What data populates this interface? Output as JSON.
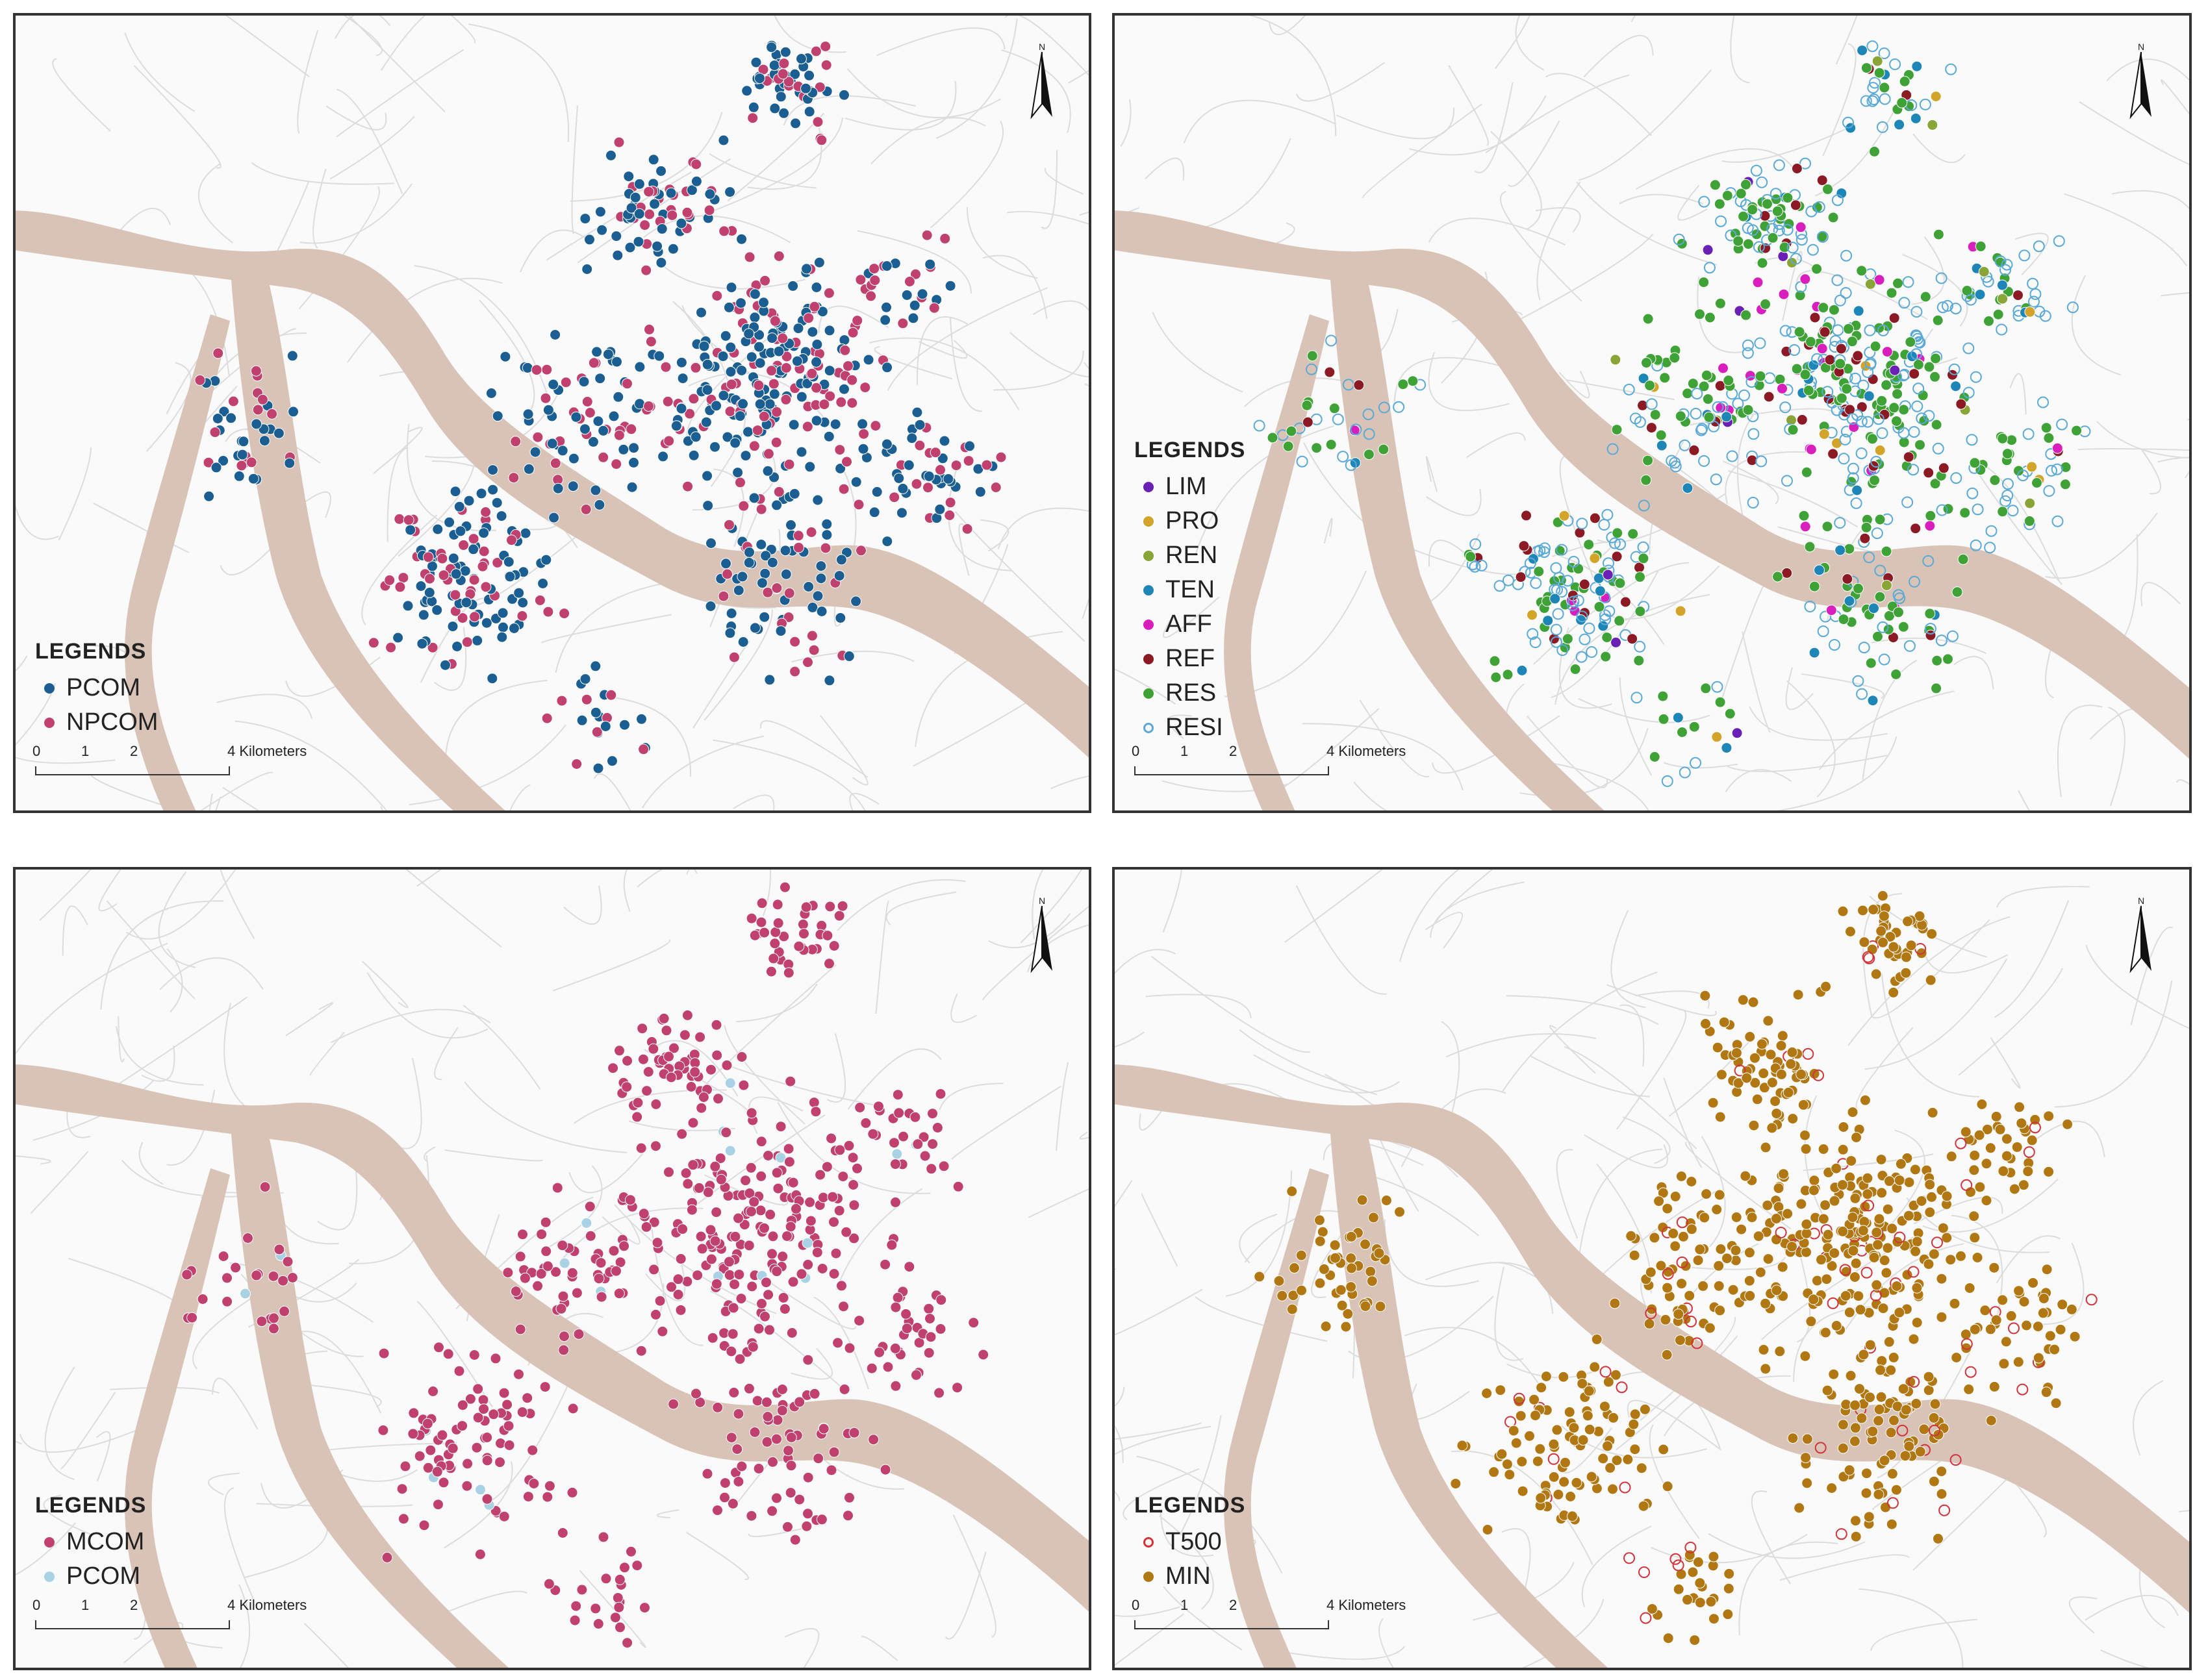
{
  "panels": [
    {
      "id": "p1",
      "legend_title": "LEGENDS",
      "legend": [
        {
          "label": "PCOM",
          "color": "#1b5e92",
          "hollow": false
        },
        {
          "label": "NPCOM",
          "color": "#c0406e",
          "hollow": false
        }
      ]
    },
    {
      "id": "p2",
      "legend_title": "LEGENDS",
      "legend": [
        {
          "label": "LIM",
          "color": "#6a1fb5",
          "hollow": false
        },
        {
          "label": "PRO",
          "color": "#d2a42a",
          "hollow": false
        },
        {
          "label": "REN",
          "color": "#8aa537",
          "hollow": false
        },
        {
          "label": "TEN",
          "color": "#1e86b6",
          "hollow": false
        },
        {
          "label": "AFF",
          "color": "#d81fbe",
          "hollow": false
        },
        {
          "label": "REF",
          "color": "#8c1a24",
          "hollow": false
        },
        {
          "label": "RES",
          "color": "#3ea236",
          "hollow": false
        },
        {
          "label": "RESI",
          "color": "#5aa9d6",
          "hollow": true
        }
      ]
    },
    {
      "id": "p3",
      "legend_title": "LEGENDS",
      "legend": [
        {
          "label": "MCOM",
          "color": "#c0406e",
          "hollow": false
        },
        {
          "label": "PCOM",
          "color": "#a9d3e4",
          "hollow": false
        }
      ]
    },
    {
      "id": "p4",
      "legend_title": "LEGENDS",
      "legend": [
        {
          "label": "T500",
          "color": "#d0343a",
          "hollow": true
        },
        {
          "label": "MIN",
          "color": "#b07712",
          "hollow": false
        }
      ]
    }
  ],
  "scale_bar": {
    "ticks": [
      "0",
      "1",
      "2",
      "4 Kilometers"
    ]
  },
  "north_label": "N"
}
